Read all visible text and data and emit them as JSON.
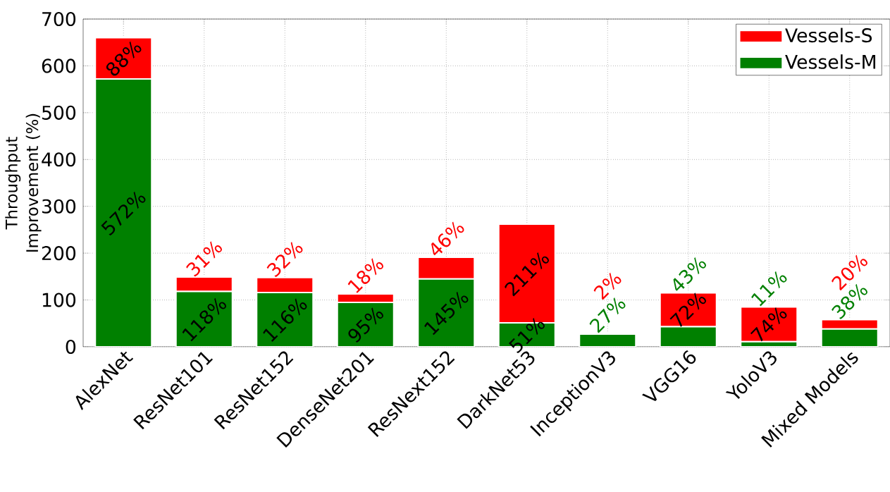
{
  "chart_data": {
    "type": "bar",
    "stacked": true,
    "ylabel": "Throughput Improvement (%)",
    "categories": [
      "AlexNet",
      "ResNet101",
      "ResNet152",
      "DenseNet201",
      "ResNext152",
      "DarkNet53",
      "InceptionV3",
      "VGG16",
      "YoloV3",
      "Mixed Models"
    ],
    "series": [
      {
        "name": "Vessels-M",
        "color": "#008000",
        "values": [
          572,
          118,
          116,
          95,
          145,
          51,
          27,
          43,
          11,
          38
        ],
        "value_labels": [
          "572%",
          "118%",
          "116%",
          "95%",
          "145%",
          "51%",
          "27%",
          "43%",
          "11%",
          "38%"
        ]
      },
      {
        "name": "Vessels-S",
        "color": "#ff0000",
        "values": [
          88,
          31,
          32,
          18,
          46,
          211,
          2,
          72,
          74,
          20
        ],
        "value_labels": [
          "88%",
          "31%",
          "32%",
          "18%",
          "46%",
          "211%",
          "2%",
          "72%",
          "74%",
          "20%"
        ]
      }
    ],
    "ylim": [
      0,
      700
    ],
    "yticks": [
      0,
      100,
      200,
      300,
      400,
      500,
      600,
      700
    ],
    "grid": true,
    "legend": "top right"
  }
}
